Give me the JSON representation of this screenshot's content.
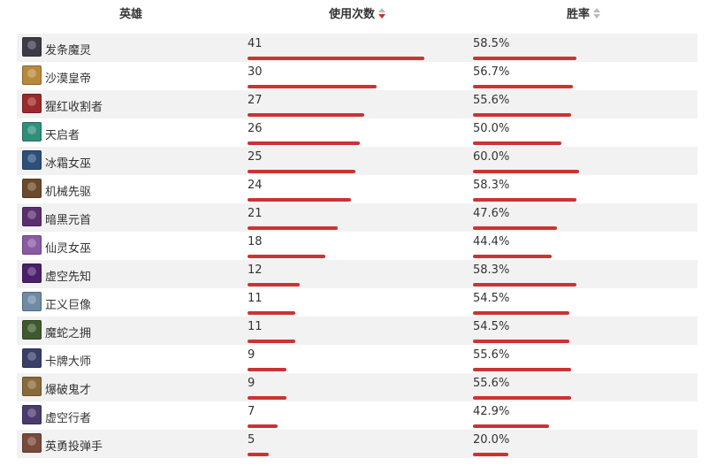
{
  "header": {
    "hero_label": "英雄",
    "count_label": "使用次数",
    "rate_label": "胜率"
  },
  "colors": {
    "bar": "#cc3333",
    "stripe": "#f2f2f2",
    "sort_active": "#c9302c"
  },
  "rows": [
    {
      "name": "发条魔灵",
      "count": "41",
      "rate": "58.5%",
      "count_value": 41,
      "rate_value": 58.5,
      "icon": "hero-orianna-icon",
      "avatar_color": "#3b3b4a"
    },
    {
      "name": "沙漠皇帝",
      "count": "30",
      "rate": "56.7%",
      "count_value": 30,
      "rate_value": 56.7,
      "icon": "hero-azir-icon",
      "avatar_color": "#b8893c"
    },
    {
      "name": "猩红收割者",
      "count": "27",
      "rate": "55.6%",
      "count_value": 27,
      "rate_value": 55.6,
      "icon": "hero-vladimir-icon",
      "avatar_color": "#9b2a2a"
    },
    {
      "name": "天启者",
      "count": "26",
      "rate": "50.0%",
      "count_value": 26,
      "rate_value": 50.0,
      "icon": "hero-karma-icon",
      "avatar_color": "#2f8f7a"
    },
    {
      "name": "冰霜女巫",
      "count": "25",
      "rate": "60.0%",
      "count_value": 25,
      "rate_value": 60.0,
      "icon": "hero-lissandra-icon",
      "avatar_color": "#2c4f7c"
    },
    {
      "name": "机械先驱",
      "count": "24",
      "rate": "58.3%",
      "count_value": 24,
      "rate_value": 58.3,
      "icon": "hero-viktor-icon",
      "avatar_color": "#6b4a2b"
    },
    {
      "name": "暗黑元首",
      "count": "21",
      "rate": "47.6%",
      "count_value": 21,
      "rate_value": 47.6,
      "icon": "hero-syndra-icon",
      "avatar_color": "#5a2f6e"
    },
    {
      "name": "仙灵女巫",
      "count": "18",
      "rate": "44.4%",
      "count_value": 18,
      "rate_value": 44.4,
      "icon": "hero-lulu-icon",
      "avatar_color": "#8a5aa3"
    },
    {
      "name": "虚空先知",
      "count": "12",
      "rate": "58.3%",
      "count_value": 12,
      "rate_value": 58.3,
      "icon": "hero-malzahar-icon",
      "avatar_color": "#4a1f6b"
    },
    {
      "name": "正义巨像",
      "count": "11",
      "rate": "54.5%",
      "count_value": 11,
      "rate_value": 54.5,
      "icon": "hero-galio-icon",
      "avatar_color": "#6f8aa5"
    },
    {
      "name": "魔蛇之拥",
      "count": "11",
      "rate": "54.5%",
      "count_value": 11,
      "rate_value": 54.5,
      "icon": "hero-cassiopeia-icon",
      "avatar_color": "#3e5a2c"
    },
    {
      "name": "卡牌大师",
      "count": "9",
      "rate": "55.6%",
      "count_value": 9,
      "rate_value": 55.6,
      "icon": "hero-twistedfate-icon",
      "avatar_color": "#3a3f6a"
    },
    {
      "name": "爆破鬼才",
      "count": "9",
      "rate": "55.6%",
      "count_value": 9,
      "rate_value": 55.6,
      "icon": "hero-ziggs-icon",
      "avatar_color": "#8a6a3a"
    },
    {
      "name": "虚空行者",
      "count": "7",
      "rate": "42.9%",
      "count_value": 7,
      "rate_value": 42.9,
      "icon": "hero-kassadin-icon",
      "avatar_color": "#4b3a6e"
    },
    {
      "name": "英勇投弹手",
      "count": "5",
      "rate": "20.0%",
      "count_value": 5,
      "rate_value": 20.0,
      "icon": "hero-corki-icon",
      "avatar_color": "#7a4a3a"
    }
  ]
}
